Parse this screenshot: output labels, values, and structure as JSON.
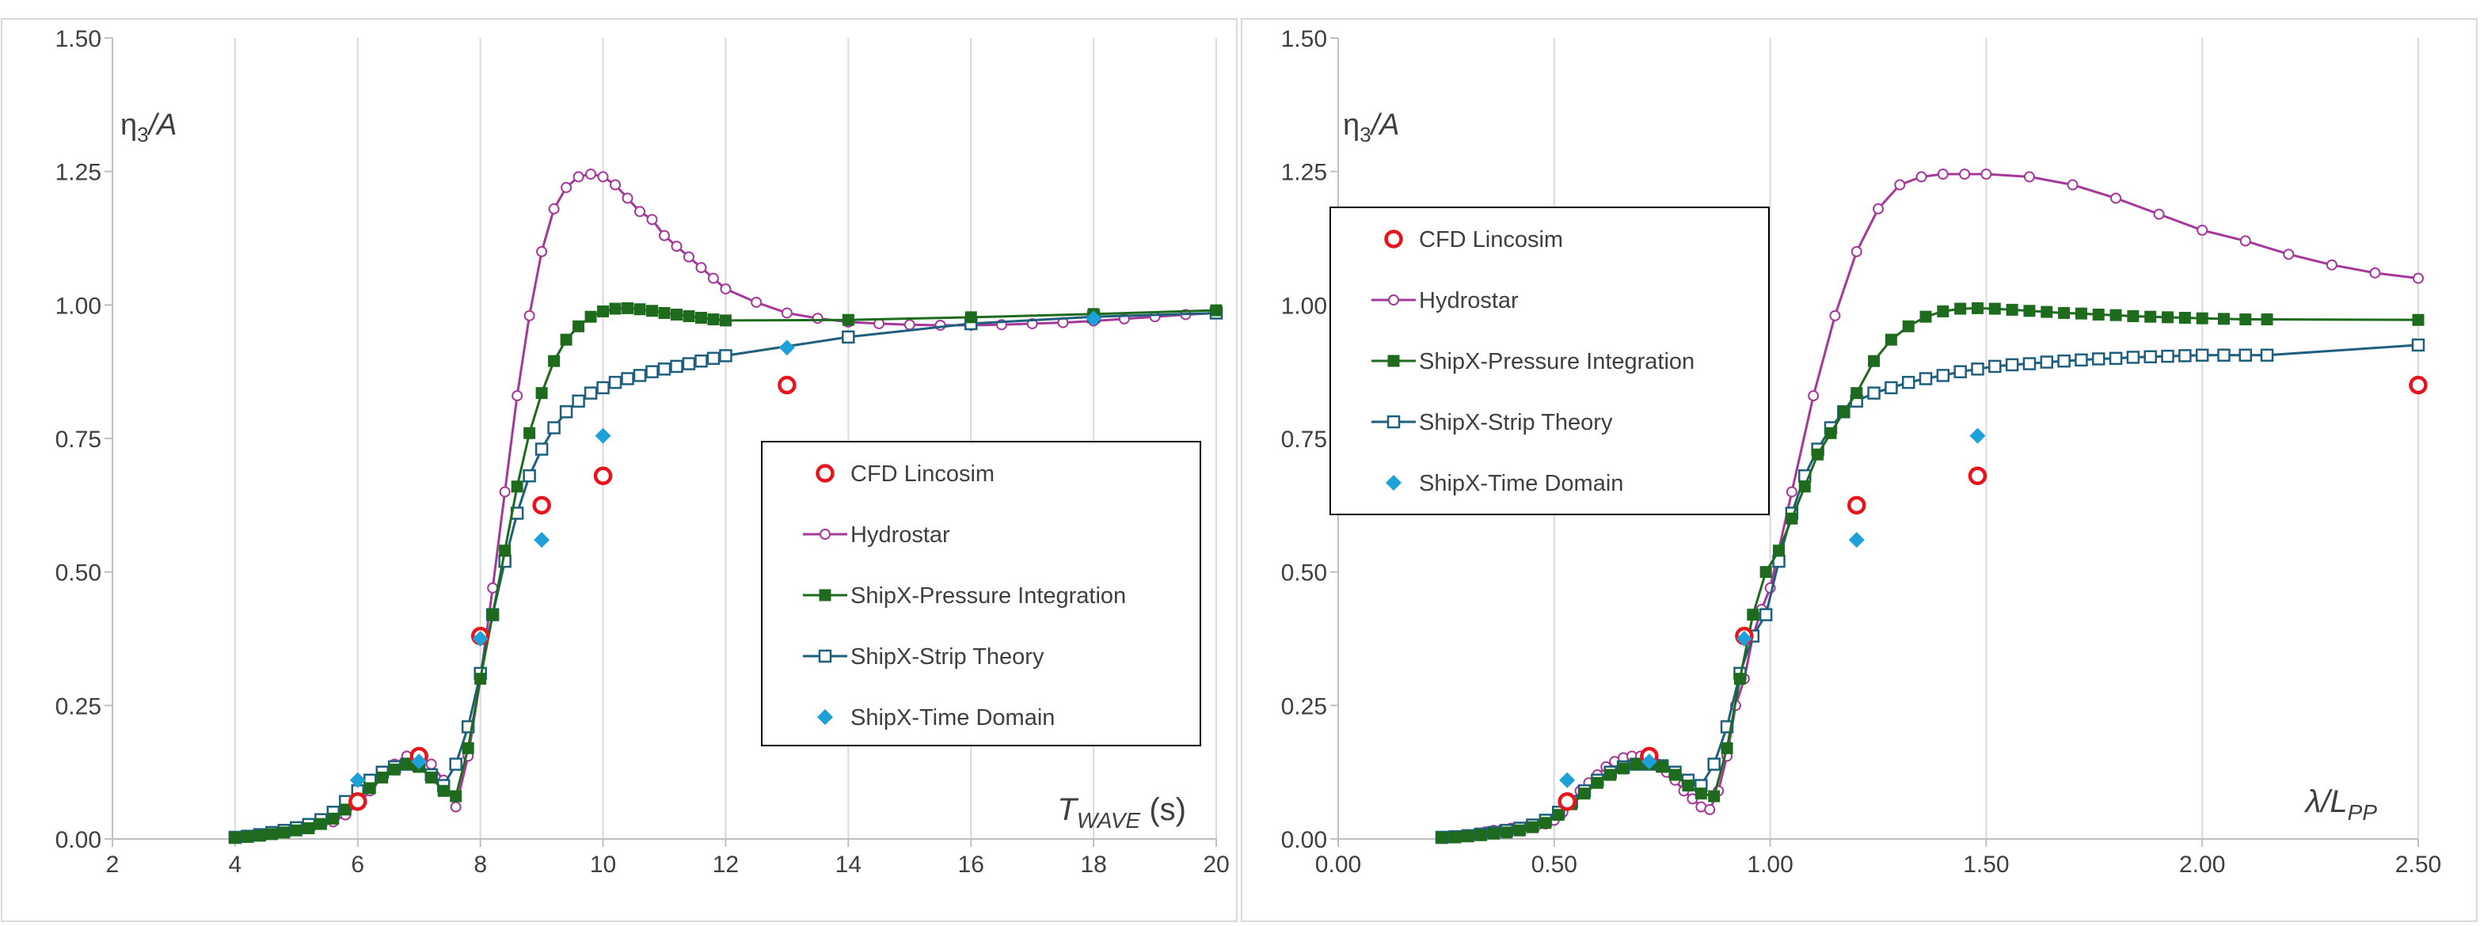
{
  "chart_data": [
    {
      "type": "scatter",
      "title": "",
      "xlabel": "T_WAVE (s)",
      "xlabel_parts": {
        "main": "T",
        "sub": "WAVE",
        "unit": " (s)"
      },
      "ylabel": "η3/A",
      "ylabel_parts": {
        "main": "η",
        "sub": "3",
        "rest": "/A"
      },
      "xlim": [
        2,
        20
      ],
      "ylim": [
        0,
        1.5
      ],
      "xticks": [
        2,
        4,
        6,
        8,
        10,
        12,
        14,
        16,
        18,
        20
      ],
      "xtick_labels": [
        "2",
        "4",
        "6",
        "8",
        "10",
        "12",
        "14",
        "16",
        "18",
        "20"
      ],
      "yticks": [
        0,
        0.25,
        0.5,
        0.75,
        1.0,
        1.25,
        1.5
      ],
      "ytick_labels": [
        "0.00",
        "0.25",
        "0.50",
        "0.75",
        "1.00",
        "1.25",
        "1.50"
      ],
      "grid": "vertical",
      "legend_position": "center-right",
      "series": [
        {
          "name": "CFD Lincosim",
          "style": "circle-open",
          "color": "#e8141b",
          "x": [
            6,
            7,
            8,
            9,
            10,
            13
          ],
          "y": [
            0.07,
            0.155,
            0.38,
            0.625,
            0.68,
            0.85
          ]
        },
        {
          "name": "Hydrostar",
          "style": "line-circle-open",
          "color": "#a4399a",
          "x": [
            4.0,
            4.2,
            4.4,
            4.6,
            4.8,
            5.0,
            5.2,
            5.4,
            5.6,
            5.8,
            6.0,
            6.2,
            6.4,
            6.6,
            6.8,
            7.0,
            7.2,
            7.4,
            7.6,
            7.8,
            8.0,
            8.2,
            8.4,
            8.6,
            8.8,
            9.0,
            9.2,
            9.4,
            9.6,
            9.8,
            10.0,
            10.2,
            10.4,
            10.6,
            10.8,
            11.0,
            11.2,
            11.4,
            11.6,
            11.8,
            12.0,
            12.5,
            13.0,
            13.5,
            14.0,
            14.5,
            15.0,
            15.5,
            16.0,
            16.5,
            17.0,
            17.5,
            18.0,
            18.5,
            19.0,
            19.5,
            20.0
          ],
          "y": [
            0.003,
            0.005,
            0.008,
            0.012,
            0.017,
            0.022,
            0.026,
            0.028,
            0.032,
            0.045,
            0.065,
            0.09,
            0.115,
            0.14,
            0.155,
            0.155,
            0.14,
            0.11,
            0.06,
            0.155,
            0.3,
            0.47,
            0.65,
            0.83,
            0.98,
            1.1,
            1.18,
            1.22,
            1.24,
            1.245,
            1.24,
            1.225,
            1.2,
            1.175,
            1.16,
            1.13,
            1.11,
            1.09,
            1.07,
            1.05,
            1.03,
            1.005,
            0.985,
            0.975,
            0.968,
            0.965,
            0.963,
            0.962,
            0.962,
            0.963,
            0.965,
            0.967,
            0.97,
            0.974,
            0.978,
            0.982,
            0.985
          ]
        },
        {
          "name": "ShipX-Pressure Integration",
          "style": "line-square-filled",
          "color": "#1e6b1e",
          "x": [
            4.0,
            4.2,
            4.4,
            4.6,
            4.8,
            5.0,
            5.2,
            5.4,
            5.6,
            5.8,
            6.0,
            6.2,
            6.4,
            6.6,
            6.8,
            7.0,
            7.2,
            7.4,
            7.6,
            7.8,
            8.0,
            8.2,
            8.4,
            8.6,
            8.8,
            9.0,
            9.2,
            9.4,
            9.6,
            9.8,
            10.0,
            10.2,
            10.4,
            10.6,
            10.8,
            11.0,
            11.2,
            11.4,
            11.6,
            11.8,
            12.0,
            14.0,
            16.0,
            18.0,
            20.0
          ],
          "y": [
            0.002,
            0.004,
            0.006,
            0.009,
            0.012,
            0.016,
            0.02,
            0.028,
            0.038,
            0.055,
            0.075,
            0.095,
            0.115,
            0.13,
            0.14,
            0.135,
            0.115,
            0.09,
            0.08,
            0.17,
            0.3,
            0.42,
            0.54,
            0.66,
            0.76,
            0.835,
            0.895,
            0.935,
            0.96,
            0.978,
            0.988,
            0.993,
            0.994,
            0.992,
            0.989,
            0.985,
            0.982,
            0.979,
            0.976,
            0.973,
            0.971,
            0.972,
            0.977,
            0.983,
            0.99
          ]
        },
        {
          "name": "ShipX-Strip Theory",
          "style": "line-square-open",
          "color": "#1f5f7e",
          "x": [
            4.0,
            4.2,
            4.4,
            4.6,
            4.8,
            5.0,
            5.2,
            5.4,
            5.6,
            5.8,
            6.0,
            6.2,
            6.4,
            6.6,
            6.8,
            7.0,
            7.2,
            7.4,
            7.6,
            7.8,
            8.0,
            8.2,
            8.4,
            8.6,
            8.8,
            9.0,
            9.2,
            9.4,
            9.6,
            9.8,
            10.0,
            10.2,
            10.4,
            10.6,
            10.8,
            11.0,
            11.2,
            11.4,
            11.6,
            11.8,
            12.0,
            14.0,
            16.0,
            18.0,
            20.0
          ],
          "y": [
            0.003,
            0.005,
            0.008,
            0.012,
            0.016,
            0.021,
            0.027,
            0.036,
            0.05,
            0.07,
            0.09,
            0.11,
            0.125,
            0.135,
            0.14,
            0.137,
            0.12,
            0.1,
            0.14,
            0.21,
            0.31,
            0.42,
            0.52,
            0.61,
            0.68,
            0.73,
            0.77,
            0.8,
            0.82,
            0.835,
            0.845,
            0.855,
            0.862,
            0.868,
            0.875,
            0.88,
            0.885,
            0.89,
            0.895,
            0.9,
            0.905,
            0.94,
            0.965,
            0.978,
            0.985
          ]
        },
        {
          "name": "ShipX-Time Domain",
          "style": "diamond-filled",
          "color": "#1ea1d8",
          "x": [
            6,
            7,
            8,
            9,
            10,
            13,
            18
          ],
          "y": [
            0.11,
            0.145,
            0.375,
            0.56,
            0.755,
            0.92,
            0.975
          ]
        }
      ]
    },
    {
      "type": "scatter",
      "title": "",
      "xlabel": "λ/L_PP",
      "xlabel_parts": {
        "main": "λ/L",
        "sub": "PP",
        "unit": ""
      },
      "ylabel": "η3/A",
      "ylabel_parts": {
        "main": "η",
        "sub": "3",
        "rest": "/A"
      },
      "xlim": [
        0,
        2.5
      ],
      "ylim": [
        0,
        1.5
      ],
      "xticks": [
        0,
        0.5,
        1.0,
        1.5,
        2.0,
        2.5
      ],
      "xtick_labels": [
        "0.00",
        "0.50",
        "1.00",
        "1.50",
        "2.00",
        "2.50"
      ],
      "yticks": [
        0,
        0.25,
        0.5,
        0.75,
        1.0,
        1.25,
        1.5
      ],
      "ytick_labels": [
        "0.00",
        "0.25",
        "0.50",
        "0.75",
        "1.00",
        "1.25",
        "1.50"
      ],
      "grid": "vertical",
      "legend_position": "top-left",
      "series": [
        {
          "name": "CFD Lincosim",
          "style": "circle-open",
          "color": "#e8141b",
          "x": [
            0.53,
            0.72,
            0.94,
            1.2,
            1.48,
            2.5
          ],
          "y": [
            0.07,
            0.155,
            0.38,
            0.625,
            0.68,
            0.85
          ]
        },
        {
          "name": "Hydrostar",
          "style": "line-circle-open",
          "color": "#a4399a",
          "x": [
            0.24,
            0.26,
            0.28,
            0.3,
            0.32,
            0.34,
            0.36,
            0.38,
            0.4,
            0.42,
            0.44,
            0.46,
            0.48,
            0.5,
            0.52,
            0.54,
            0.56,
            0.58,
            0.6,
            0.62,
            0.64,
            0.66,
            0.68,
            0.7,
            0.72,
            0.74,
            0.76,
            0.78,
            0.8,
            0.82,
            0.84,
            0.86,
            0.88,
            0.9,
            0.92,
            0.94,
            0.96,
            0.98,
            1.0,
            1.05,
            1.1,
            1.15,
            1.2,
            1.25,
            1.3,
            1.35,
            1.4,
            1.45,
            1.5,
            1.6,
            1.7,
            1.8,
            1.9,
            2.0,
            2.1,
            2.2,
            2.3,
            2.4,
            2.5
          ],
          "y": [
            0.003,
            0.004,
            0.006,
            0.008,
            0.01,
            0.013,
            0.016,
            0.018,
            0.02,
            0.022,
            0.024,
            0.026,
            0.028,
            0.035,
            0.05,
            0.07,
            0.09,
            0.105,
            0.12,
            0.135,
            0.145,
            0.152,
            0.155,
            0.155,
            0.152,
            0.14,
            0.125,
            0.11,
            0.09,
            0.075,
            0.06,
            0.055,
            0.09,
            0.155,
            0.25,
            0.3,
            0.38,
            0.43,
            0.47,
            0.65,
            0.83,
            0.98,
            1.1,
            1.18,
            1.225,
            1.24,
            1.245,
            1.245,
            1.245,
            1.24,
            1.225,
            1.2,
            1.17,
            1.14,
            1.12,
            1.095,
            1.075,
            1.06,
            1.05
          ]
        },
        {
          "name": "ShipX-Pressure Integration",
          "style": "line-square-filled",
          "color": "#1e6b1e",
          "x": [
            0.24,
            0.27,
            0.3,
            0.33,
            0.36,
            0.39,
            0.42,
            0.45,
            0.48,
            0.51,
            0.54,
            0.57,
            0.6,
            0.63,
            0.66,
            0.69,
            0.72,
            0.75,
            0.78,
            0.81,
            0.84,
            0.87,
            0.9,
            0.93,
            0.96,
            0.99,
            1.02,
            1.05,
            1.08,
            1.11,
            1.14,
            1.17,
            1.2,
            1.24,
            1.28,
            1.32,
            1.36,
            1.4,
            1.44,
            1.48,
            1.52,
            1.56,
            1.6,
            1.64,
            1.68,
            1.72,
            1.76,
            1.8,
            1.84,
            1.88,
            1.92,
            1.96,
            2.0,
            2.05,
            2.1,
            2.15,
            2.5
          ],
          "y": [
            0.002,
            0.003,
            0.005,
            0.007,
            0.01,
            0.012,
            0.016,
            0.022,
            0.03,
            0.045,
            0.065,
            0.085,
            0.105,
            0.12,
            0.132,
            0.14,
            0.14,
            0.135,
            0.12,
            0.1,
            0.085,
            0.08,
            0.17,
            0.3,
            0.42,
            0.5,
            0.54,
            0.6,
            0.66,
            0.72,
            0.76,
            0.8,
            0.835,
            0.895,
            0.935,
            0.96,
            0.978,
            0.988,
            0.993,
            0.994,
            0.993,
            0.991,
            0.989,
            0.987,
            0.985,
            0.984,
            0.982,
            0.981,
            0.979,
            0.978,
            0.977,
            0.976,
            0.975,
            0.974,
            0.973,
            0.973,
            0.972
          ]
        },
        {
          "name": "ShipX-Strip Theory",
          "style": "line-square-open",
          "color": "#1f5f7e",
          "x": [
            0.24,
            0.27,
            0.3,
            0.33,
            0.36,
            0.39,
            0.42,
            0.45,
            0.48,
            0.51,
            0.54,
            0.57,
            0.6,
            0.63,
            0.66,
            0.69,
            0.72,
            0.75,
            0.78,
            0.81,
            0.84,
            0.87,
            0.9,
            0.93,
            0.96,
            0.99,
            1.02,
            1.05,
            1.08,
            1.11,
            1.14,
            1.17,
            1.2,
            1.24,
            1.28,
            1.32,
            1.36,
            1.4,
            1.44,
            1.48,
            1.52,
            1.56,
            1.6,
            1.64,
            1.68,
            1.72,
            1.76,
            1.8,
            1.84,
            1.88,
            1.92,
            1.96,
            2.0,
            2.05,
            2.1,
            2.15,
            2.5
          ],
          "y": [
            0.003,
            0.004,
            0.006,
            0.009,
            0.012,
            0.016,
            0.02,
            0.026,
            0.035,
            0.05,
            0.07,
            0.09,
            0.11,
            0.125,
            0.135,
            0.14,
            0.14,
            0.137,
            0.125,
            0.11,
            0.1,
            0.14,
            0.21,
            0.31,
            0.38,
            0.42,
            0.52,
            0.61,
            0.68,
            0.73,
            0.77,
            0.8,
            0.82,
            0.835,
            0.845,
            0.855,
            0.862,
            0.868,
            0.875,
            0.88,
            0.885,
            0.888,
            0.89,
            0.893,
            0.895,
            0.897,
            0.899,
            0.9,
            0.902,
            0.903,
            0.904,
            0.905,
            0.906,
            0.906,
            0.906,
            0.906,
            0.925
          ]
        },
        {
          "name": "ShipX-Time Domain",
          "style": "diamond-filled",
          "color": "#1ea1d8",
          "x": [
            0.53,
            0.72,
            0.94,
            1.2,
            1.48
          ],
          "y": [
            0.11,
            0.145,
            0.375,
            0.56,
            0.755
          ]
        }
      ]
    }
  ]
}
